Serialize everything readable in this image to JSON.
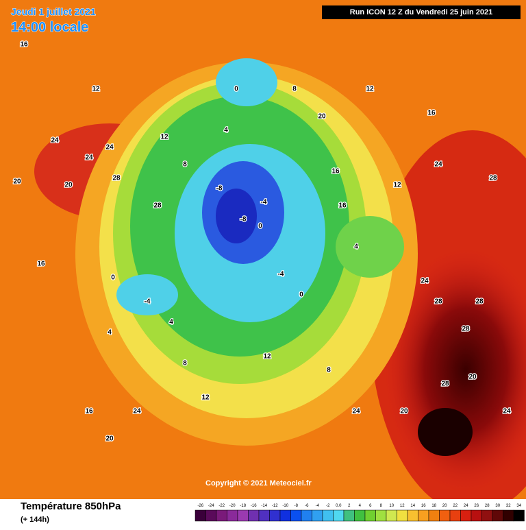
{
  "header": {
    "date": "Jeudi 1 juillet 2021",
    "time": "14:00 locale",
    "run": "Run ICON 12 Z du Vendredi 25 juin 2021"
  },
  "map": {
    "copyright": "Copyright © 2021 Meteociel.fr",
    "labels": [
      "16",
      "12",
      "20",
      "24",
      "24",
      "28",
      "28",
      "24",
      "20",
      "16",
      "12",
      "8",
      "4",
      "0",
      "0",
      "-4",
      "-8",
      "-8",
      "-4",
      "0",
      "4",
      "8",
      "12",
      "16",
      "20",
      "24",
      "28",
      "28",
      "28",
      "24",
      "20",
      "16",
      "12",
      "8",
      "4",
      "-4",
      "0",
      "4",
      "12",
      "16",
      "20",
      "24",
      "28",
      "24",
      "20",
      "28",
      "24",
      "16",
      "12",
      "8"
    ]
  },
  "footer": {
    "title": "Température 850hPa",
    "subtitle": "(+ 144h)",
    "scale": [
      "-26",
      "-24",
      "-22",
      "-20",
      "-18",
      "-16",
      "-14",
      "-12",
      "-10",
      "-8",
      "-6",
      "-4",
      "-2",
      "0.0",
      "2",
      "4",
      "6",
      "8",
      "10",
      "12",
      "14",
      "16",
      "18",
      "20",
      "22",
      "24",
      "26",
      "28",
      "30",
      "32",
      "34"
    ]
  }
}
